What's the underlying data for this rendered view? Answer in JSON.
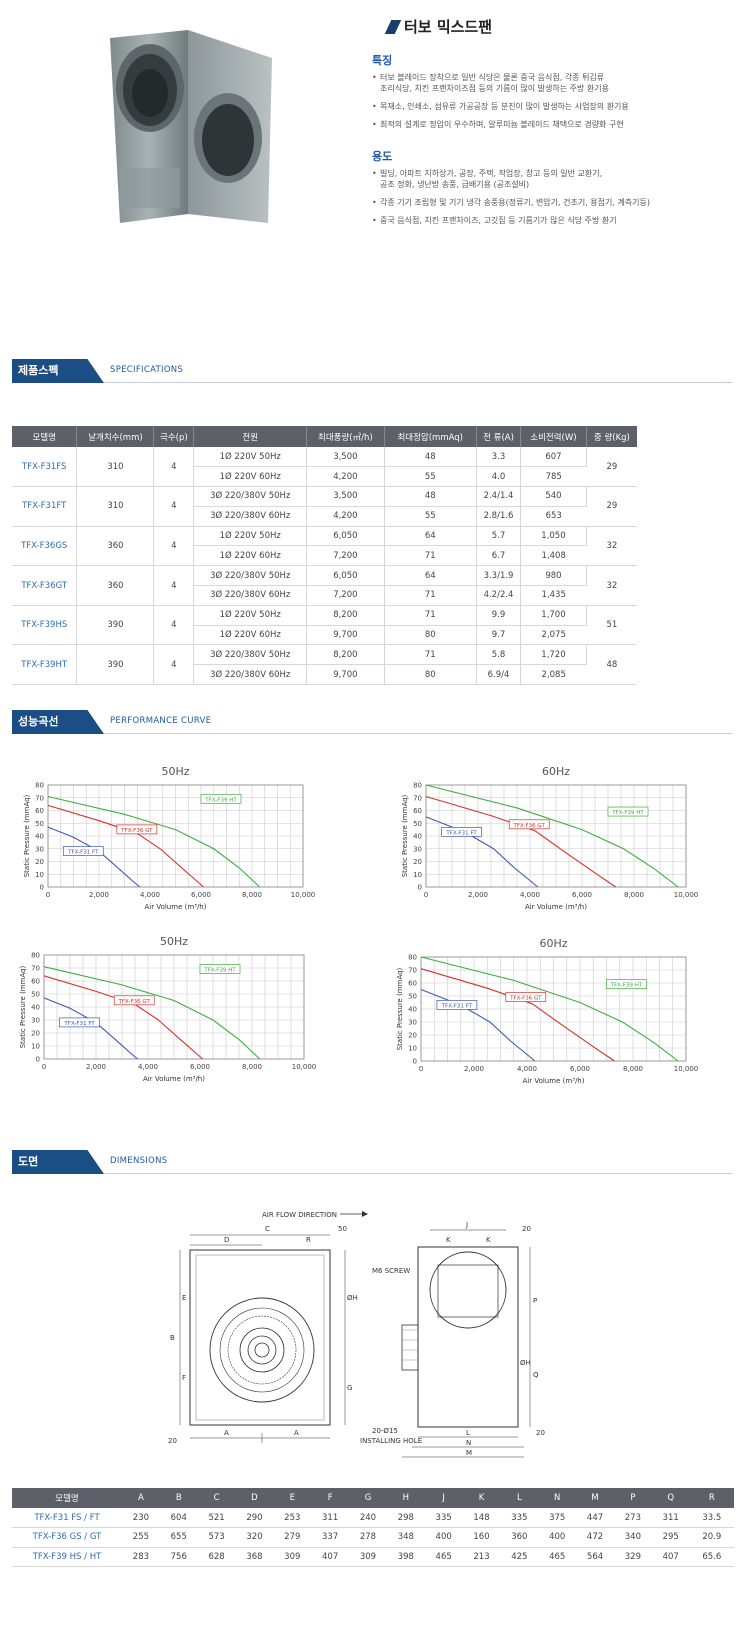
{
  "product": {
    "title": "터보 믹스드팬",
    "features_heading": "특징",
    "features": [
      [
        "터보 블레이드 장착으로 일반 식당은 물론 중국 음식점, 각종 튀김류",
        "조리식당, 치킨 프랜차이즈점 등의 기름이 많이 발생하는 주방 환기용"
      ],
      [
        "목재소, 인쇄소, 섬유류 가공공장 등 분진이 많이 발생하는 사업장의 환기용"
      ],
      [
        "최적의 설계로 정압이 우수하며, 알루미늄 블레이드 채택으로 경량화 구현"
      ]
    ],
    "uses_heading": "용도",
    "uses": [
      [
        "빌딩, 아파트 지하상가, 공장, 주택, 작업장, 창고 등의 일반 교환기,",
        "공조 정화, 냉난방 송풍, 급배기용 (공조설비)"
      ],
      [
        "각종 기기 조립형 및 기기 냉각 송풍용(정류기, 변압기, 건조기, 용접기, 계측기등)"
      ],
      [
        "중국 음식점, 치킨 프랜차이즈, 고깃집 등 기름기가 많은 식당 주방 환기"
      ]
    ]
  },
  "sections": {
    "spec": {
      "ko": "제품스펙",
      "en": "SPECIFICATIONS"
    },
    "curve": {
      "ko": "성능곡선",
      "en": "PERFORMANCE CURVE"
    },
    "dims": {
      "ko": "도면",
      "en": "DIMENSIONS"
    }
  },
  "spec_table": {
    "headers": [
      "모델명",
      "날개치수(mm)",
      "극수(p)",
      "전원",
      "최대풍량(㎥/h)",
      "최대정압(mmAq)",
      "전 류(A)",
      "소비전력(W)",
      "중 량(Kg)"
    ],
    "groups": [
      {
        "model": "TFX-F31FS",
        "blade": "310",
        "poles": "4",
        "weight": "29",
        "rows": [
          [
            "1Ø 220V 50Hz",
            "3,500",
            "48",
            "3.3",
            "607"
          ],
          [
            "1Ø 220V 60Hz",
            "4,200",
            "55",
            "4.0",
            "785"
          ]
        ]
      },
      {
        "model": "TFX-F31FT",
        "blade": "310",
        "poles": "4",
        "weight": "29",
        "rows": [
          [
            "3Ø 220/380V 50Hz",
            "3,500",
            "48",
            "2.4/1.4",
            "540"
          ],
          [
            "3Ø 220/380V 60Hz",
            "4,200",
            "55",
            "2.8/1.6",
            "653"
          ]
        ]
      },
      {
        "model": "TFX-F36GS",
        "blade": "360",
        "poles": "4",
        "weight": "32",
        "rows": [
          [
            "1Ø 220V 50Hz",
            "6,050",
            "64",
            "5.7",
            "1,050"
          ],
          [
            "1Ø 220V 60Hz",
            "7,200",
            "71",
            "6.7",
            "1,408"
          ]
        ]
      },
      {
        "model": "TFX-F36GT",
        "blade": "360",
        "poles": "4",
        "weight": "32",
        "rows": [
          [
            "3Ø 220/380V 50Hz",
            "6,050",
            "64",
            "3.3/1.9",
            "980"
          ],
          [
            "3Ø 220/380V 60Hz",
            "7,200",
            "71",
            "4.2/2.4",
            "1,435"
          ]
        ]
      },
      {
        "model": "TFX-F39HS",
        "blade": "390",
        "poles": "4",
        "weight": "51",
        "rows": [
          [
            "1Ø 220V 50Hz",
            "8,200",
            "71",
            "9.9",
            "1,700"
          ],
          [
            "1Ø 220V 60Hz",
            "9,700",
            "80",
            "9.7",
            "2,075"
          ]
        ]
      },
      {
        "model": "TFX-F39HT",
        "blade": "390",
        "poles": "4",
        "weight": "48",
        "rows": [
          [
            "3Ø 220/380V 50Hz",
            "8,200",
            "71",
            "5.8",
            "1,720"
          ],
          [
            "3Ø 220/380V 60Hz",
            "9,700",
            "80",
            "6.9/4",
            "2,085"
          ]
        ]
      }
    ]
  },
  "chart_data": [
    {
      "type": "line",
      "title": "50Hz",
      "xlabel": "Air Volume (m³/h)",
      "ylabel": "Static Pressure (mmAq)",
      "xlim": [
        0,
        10000
      ],
      "ylim": [
        0,
        80
      ],
      "xticks": [
        "0",
        "2,000",
        "4,000",
        "6,000",
        "8,000",
        "10,000"
      ],
      "yticks": [
        "0",
        "10",
        "20",
        "30",
        "40",
        "50",
        "60",
        "70",
        "80"
      ],
      "grid": true,
      "series": [
        {
          "name": "TFX-F31 FT",
          "color": "#3b5bb5",
          "x": [
            0,
            1000,
            2000,
            2800,
            3300,
            3600
          ],
          "y": [
            47,
            39,
            28,
            14,
            5,
            0
          ]
        },
        {
          "name": "TFX-F36 GT",
          "color": "#d9312b",
          "x": [
            0,
            2000,
            3500,
            4400,
            5300,
            6100
          ],
          "y": [
            64,
            52,
            42,
            30,
            14,
            0
          ]
        },
        {
          "name": "TFX-F39 HT",
          "color": "#3fae3f",
          "x": [
            0,
            3000,
            5000,
            6500,
            7500,
            8300
          ],
          "y": [
            71,
            57,
            45,
            30,
            15,
            0
          ]
        }
      ]
    },
    {
      "type": "line",
      "title": "60Hz",
      "xlabel": "Air Volume (m³/h)",
      "ylabel": "Static Pressure (mmAq)",
      "xlim": [
        0,
        10000
      ],
      "ylim": [
        0,
        80
      ],
      "xticks": [
        "0",
        "2,000",
        "4,000",
        "6,000",
        "8,000",
        "10,000"
      ],
      "yticks": [
        "0",
        "10",
        "20",
        "30",
        "40",
        "50",
        "60",
        "70",
        "80"
      ],
      "grid": true,
      "series": [
        {
          "name": "TFX-F31 FT",
          "color": "#3b5bb5",
          "x": [
            0,
            1500,
            2600,
            3400,
            4000,
            4300
          ],
          "y": [
            55,
            43,
            30,
            15,
            5,
            0
          ]
        },
        {
          "name": "TFX-F36 GT",
          "color": "#d9312b",
          "x": [
            0,
            2500,
            4200,
            5300,
            6500,
            7300
          ],
          "y": [
            71,
            56,
            44,
            28,
            11,
            0
          ]
        },
        {
          "name": "TFX-F39 HT",
          "color": "#3fae3f",
          "x": [
            0,
            3500,
            6000,
            7600,
            8800,
            9700
          ],
          "y": [
            80,
            62,
            45,
            30,
            14,
            0
          ]
        }
      ]
    },
    {
      "type": "line",
      "title": "50Hz",
      "xlabel": "Air Volume (m³/h)",
      "ylabel": "Static Pressure (mmAq)",
      "xlim": [
        0,
        10000
      ],
      "ylim": [
        0,
        80
      ],
      "xticks": [
        "0",
        "2,000",
        "4,000",
        "6,000",
        "8,000",
        "10,000"
      ],
      "yticks": [
        "0",
        "10",
        "20",
        "30",
        "40",
        "50",
        "60",
        "70",
        "80"
      ],
      "grid": true,
      "series": [
        {
          "name": "TFX-F31 FT",
          "color": "#3b5bb5",
          "x": [
            0,
            1000,
            2000,
            2800,
            3300,
            3600
          ],
          "y": [
            47,
            39,
            28,
            14,
            5,
            0
          ]
        },
        {
          "name": "TFX-F36 GT",
          "color": "#d9312b",
          "x": [
            0,
            2000,
            3500,
            4400,
            5300,
            6100
          ],
          "y": [
            64,
            52,
            42,
            30,
            14,
            0
          ]
        },
        {
          "name": "TFX-F39 HT",
          "color": "#3fae3f",
          "x": [
            0,
            3000,
            5000,
            6500,
            7500,
            8300
          ],
          "y": [
            71,
            57,
            45,
            30,
            15,
            0
          ]
        }
      ]
    },
    {
      "type": "line",
      "title": "60Hz",
      "xlabel": "Air Volume (m³/h)",
      "ylabel": "Static Pressure (mmAq)",
      "xlim": [
        0,
        10000
      ],
      "ylim": [
        0,
        80
      ],
      "xticks": [
        "0",
        "2,000",
        "4,000",
        "6,000",
        "8,000",
        "10,000"
      ],
      "yticks": [
        "0",
        "10",
        "20",
        "30",
        "40",
        "50",
        "60",
        "70",
        "80"
      ],
      "grid": true,
      "series": [
        {
          "name": "TFX-F31 FT",
          "color": "#3b5bb5",
          "x": [
            0,
            1500,
            2600,
            3400,
            4000,
            4300
          ],
          "y": [
            55,
            43,
            30,
            15,
            5,
            0
          ]
        },
        {
          "name": "TFX-F36 GT",
          "color": "#d9312b",
          "x": [
            0,
            2500,
            4200,
            5300,
            6500,
            7300
          ],
          "y": [
            71,
            56,
            44,
            28,
            11,
            0
          ]
        },
        {
          "name": "TFX-F39 HT",
          "color": "#3fae3f",
          "x": [
            0,
            3500,
            6000,
            7600,
            8800,
            9700
          ],
          "y": [
            80,
            62,
            45,
            30,
            14,
            0
          ]
        }
      ]
    }
  ],
  "drawing": {
    "airflow": "AIR FLOW DIRECTION",
    "screw": "M6 SCREW",
    "holes": "20-Ø15",
    "installing": "INSTALLING HOLE",
    "letters": {
      "C": "C",
      "D": "D",
      "R": "R",
      "E": "E",
      "B": "B",
      "F": "F",
      "G": "G",
      "OH": "ØH",
      "A": "A",
      "J": "J",
      "K": "K",
      "P": "P",
      "Q": "Q",
      "L": "L",
      "N": "N",
      "M": "M",
      "d50": "50",
      "d20": "20"
    }
  },
  "dims_table": {
    "headers": [
      "모델명",
      "A",
      "B",
      "C",
      "D",
      "E",
      "F",
      "G",
      "H",
      "J",
      "K",
      "L",
      "N",
      "M",
      "P",
      "Q",
      "R"
    ],
    "rows": [
      [
        "TFX-F31 FS / FT",
        "230",
        "604",
        "521",
        "290",
        "253",
        "311",
        "240",
        "298",
        "335",
        "148",
        "335",
        "375",
        "447",
        "273",
        "311",
        "33.5"
      ],
      [
        "TFX-F36 GS / GT",
        "255",
        "655",
        "573",
        "320",
        "279",
        "337",
        "278",
        "348",
        "400",
        "160",
        "360",
        "400",
        "472",
        "340",
        "295",
        "20.9"
      ],
      [
        "TFX-F39 HS / HT",
        "283",
        "756",
        "628",
        "368",
        "309",
        "407",
        "309",
        "398",
        "465",
        "213",
        "425",
        "465",
        "564",
        "329",
        "407",
        "65.6"
      ]
    ]
  }
}
